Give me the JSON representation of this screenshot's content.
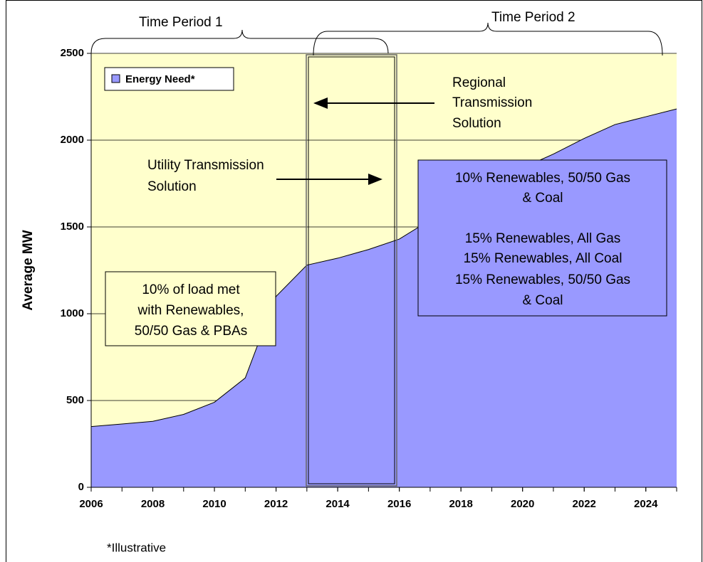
{
  "chart_data": {
    "type": "area",
    "y_label": "Average MW",
    "footnote": "*Illustrative",
    "x": [
      2006,
      2007,
      2008,
      2009,
      2010,
      2011,
      2012,
      2013,
      2014,
      2015,
      2016,
      2017,
      2018,
      2019,
      2020,
      2021,
      2022,
      2023,
      2024,
      2025
    ],
    "series": [
      {
        "name": "Energy Need*",
        "color": "#9999ff",
        "values": [
          350,
          365,
          380,
          420,
          490,
          630,
          1100,
          1280,
          1320,
          1370,
          1430,
          1540,
          1690,
          1760,
          1840,
          1920,
          2010,
          2090,
          2135,
          2180
        ]
      }
    ],
    "xlim": [
      2006,
      2025
    ],
    "xticks": [
      2006,
      2008,
      2010,
      2012,
      2014,
      2016,
      2018,
      2020,
      2022,
      2024
    ],
    "ylim": [
      0,
      2500
    ],
    "yticks": [
      0,
      500,
      1000,
      1500,
      2000,
      2500
    ],
    "grid": true,
    "background": "#ffffcc",
    "legend": "upper left",
    "periods": [
      "Time Period 1",
      "Time Period 2"
    ],
    "annotations": [
      {
        "lines": [
          "Regional",
          "Transmission",
          "Solution"
        ]
      },
      {
        "lines": [
          "Utility Transmission",
          "Solution"
        ]
      },
      {
        "lines": [
          "10% of load met",
          "with Renewables,",
          "50/50 Gas & PBAs"
        ]
      },
      {
        "lines": [
          "10% Renewables, 50/50 Gas",
          "& Coal"
        ]
      },
      {
        "lines": [
          "15% Renewables, All Gas",
          "15% Renewables, All Coal",
          "15% Renewables, 50/50 Gas",
          "& Coal"
        ]
      }
    ]
  }
}
